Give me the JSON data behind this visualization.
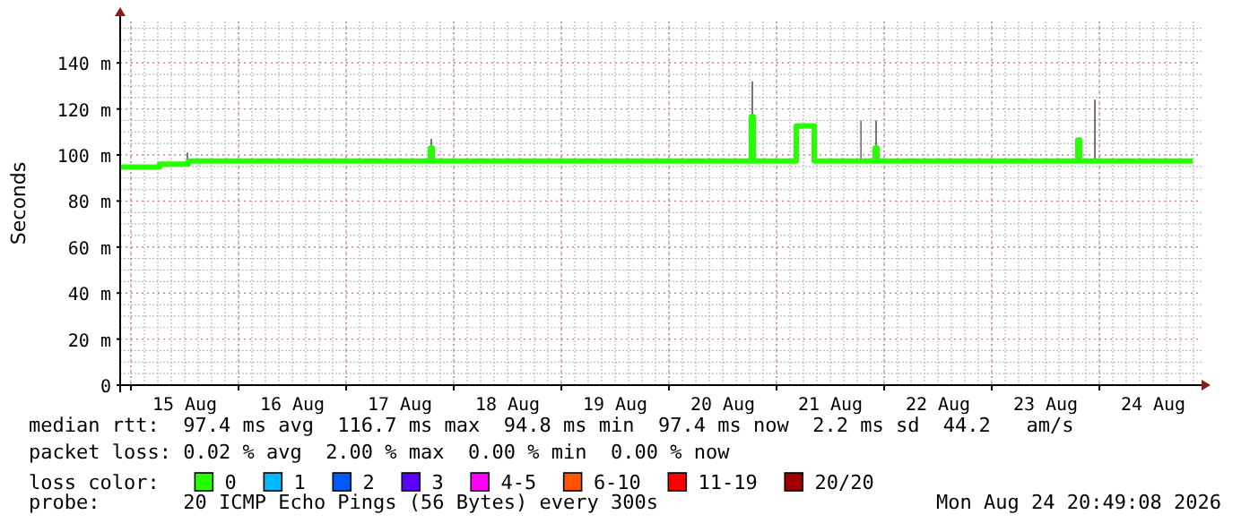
{
  "chart_data": {
    "type": "step",
    "ylabel": "Seconds",
    "legend_title": "loss color:",
    "legend": "bottom",
    "grid": true,
    "ylim": [
      0,
      158
    ],
    "yticks": [
      0,
      {
        "value": 20,
        "label": "20 m"
      },
      {
        "value": 40,
        "label": "40 m"
      },
      {
        "value": 60,
        "label": "60 m"
      },
      {
        "value": 80,
        "label": "80 m"
      },
      {
        "value": 100,
        "label": "100 m"
      },
      {
        "value": 120,
        "label": "120 m"
      },
      {
        "value": 140,
        "label": "140 m"
      }
    ],
    "xlim": [
      "2026-08-14T21:36",
      "2026-08-24T22:48"
    ],
    "xticks": [
      {
        "value": "2026-08-15T00:00",
        "label": null
      },
      {
        "value": "2026-08-15T12:00",
        "label": "15 Aug"
      },
      {
        "value": "2026-08-16T00:00",
        "label": null
      },
      {
        "value": "2026-08-16T12:00",
        "label": "16 Aug"
      },
      {
        "value": "2026-08-17T00:00",
        "label": null
      },
      {
        "value": "2026-08-17T12:00",
        "label": "17 Aug"
      },
      {
        "value": "2026-08-18T00:00",
        "label": null
      },
      {
        "value": "2026-08-18T12:00",
        "label": "18 Aug"
      },
      {
        "value": "2026-08-19T00:00",
        "label": null
      },
      {
        "value": "2026-08-19T12:00",
        "label": "19 Aug"
      },
      {
        "value": "2026-08-20T00:00",
        "label": null
      },
      {
        "value": "2026-08-20T12:00",
        "label": "20 Aug"
      },
      {
        "value": "2026-08-21T00:00",
        "label": null
      },
      {
        "value": "2026-08-21T12:00",
        "label": "21 Aug"
      },
      {
        "value": "2026-08-22T00:00",
        "label": null
      },
      {
        "value": "2026-08-22T12:00",
        "label": "22 Aug"
      },
      {
        "value": "2026-08-23T00:00",
        "label": null
      },
      {
        "value": "2026-08-23T12:00",
        "label": "23 Aug"
      },
      {
        "value": "2026-08-24T00:00",
        "label": null
      },
      {
        "value": "2026-08-24T12:00",
        "label": "24 Aug"
      }
    ],
    "x": [
      "2026-08-14T21:36",
      "2026-08-15T06:24",
      "2026-08-15T12:24",
      "2026-08-15T12:48",
      "2026-08-17T18:48",
      "2026-08-17T19:12",
      "2026-08-20T18:24",
      "2026-08-20T18:48",
      "2026-08-21T04:24",
      "2026-08-21T08:24",
      "2026-08-21T18:40",
      "2026-08-21T19:00",
      "2026-08-21T22:00",
      "2026-08-21T22:24",
      "2026-08-23T19:12",
      "2026-08-23T19:36",
      "2026-08-23T22:48",
      "2026-08-23T23:12",
      "2026-08-24T20:49"
    ],
    "series": [
      {
        "name": "0",
        "color": "#26ff00",
        "values": [
          94.8,
          96,
          96,
          97.4,
          103,
          97.4,
          116.7,
          97.4,
          112.7,
          97.4,
          97.4,
          97.4,
          103,
          97.4,
          106.5,
          97.4,
          97.4,
          97.4,
          97.4
        ],
        "lower": [
          94.8,
          96,
          96,
          97.4,
          103,
          97.4,
          116.7,
          97.4,
          112.7,
          97.4,
          97.4,
          97.4,
          103,
          97.4,
          106.5,
          97.4,
          97.4,
          97.4,
          97.4
        ],
        "upper": [
          94.8,
          96,
          101,
          97.4,
          107,
          97.4,
          132,
          97.4,
          112.7,
          97.4,
          115,
          97.4,
          115,
          97.4,
          106.5,
          97.4,
          124,
          97.4,
          97.4
        ]
      },
      {
        "name": "1",
        "color": "#00b8ff",
        "values": [
          null,
          null,
          null,
          null,
          null,
          null,
          null,
          null,
          null,
          null,
          null,
          null,
          null,
          null,
          null,
          null,
          null,
          null,
          null
        ]
      },
      {
        "name": "2",
        "color": "#0059ff",
        "values": [
          null,
          null,
          null,
          null,
          null,
          null,
          null,
          null,
          null,
          null,
          null,
          null,
          null,
          null,
          null,
          null,
          null,
          null,
          null
        ]
      },
      {
        "name": "3",
        "color": "#5e00ff",
        "values": [
          null,
          null,
          null,
          null,
          null,
          null,
          null,
          null,
          null,
          null,
          null,
          null,
          null,
          null,
          null,
          null,
          null,
          null,
          null
        ]
      },
      {
        "name": "4-5",
        "color": "#ff00ff",
        "values": [
          null,
          null,
          null,
          null,
          null,
          null,
          null,
          null,
          null,
          null,
          null,
          null,
          null,
          null,
          null,
          null,
          null,
          null,
          null
        ]
      },
      {
        "name": "6-10",
        "color": "#ff5500",
        "values": [
          null,
          null,
          null,
          null,
          null,
          null,
          null,
          null,
          null,
          null,
          null,
          null,
          null,
          null,
          null,
          null,
          null,
          null,
          null
        ]
      },
      {
        "name": "11-19",
        "color": "#ff0000",
        "values": [
          null,
          null,
          null,
          null,
          null,
          null,
          null,
          null,
          null,
          null,
          null,
          null,
          null,
          null,
          null,
          null,
          null,
          null,
          null
        ]
      },
      {
        "name": "20/20",
        "color": "#a10000",
        "values": [
          null,
          null,
          null,
          null,
          null,
          null,
          null,
          null,
          null,
          null,
          null,
          null,
          null,
          null,
          null,
          null,
          null,
          null,
          null
        ]
      }
    ],
    "annotations": [
      "median rtt:  97.4 ms avg  116.7 ms max  94.8 ms min  97.4 ms now  2.2 ms sd  44.2   am/s",
      "packet loss: 0.02 % avg  2.00 % max  0.00 % min  0.00 % now",
      "probe:       20 ICMP Echo Pings (56 Bytes) every 300s",
      "Mon Aug 24 20:49:08 2026"
    ]
  }
}
